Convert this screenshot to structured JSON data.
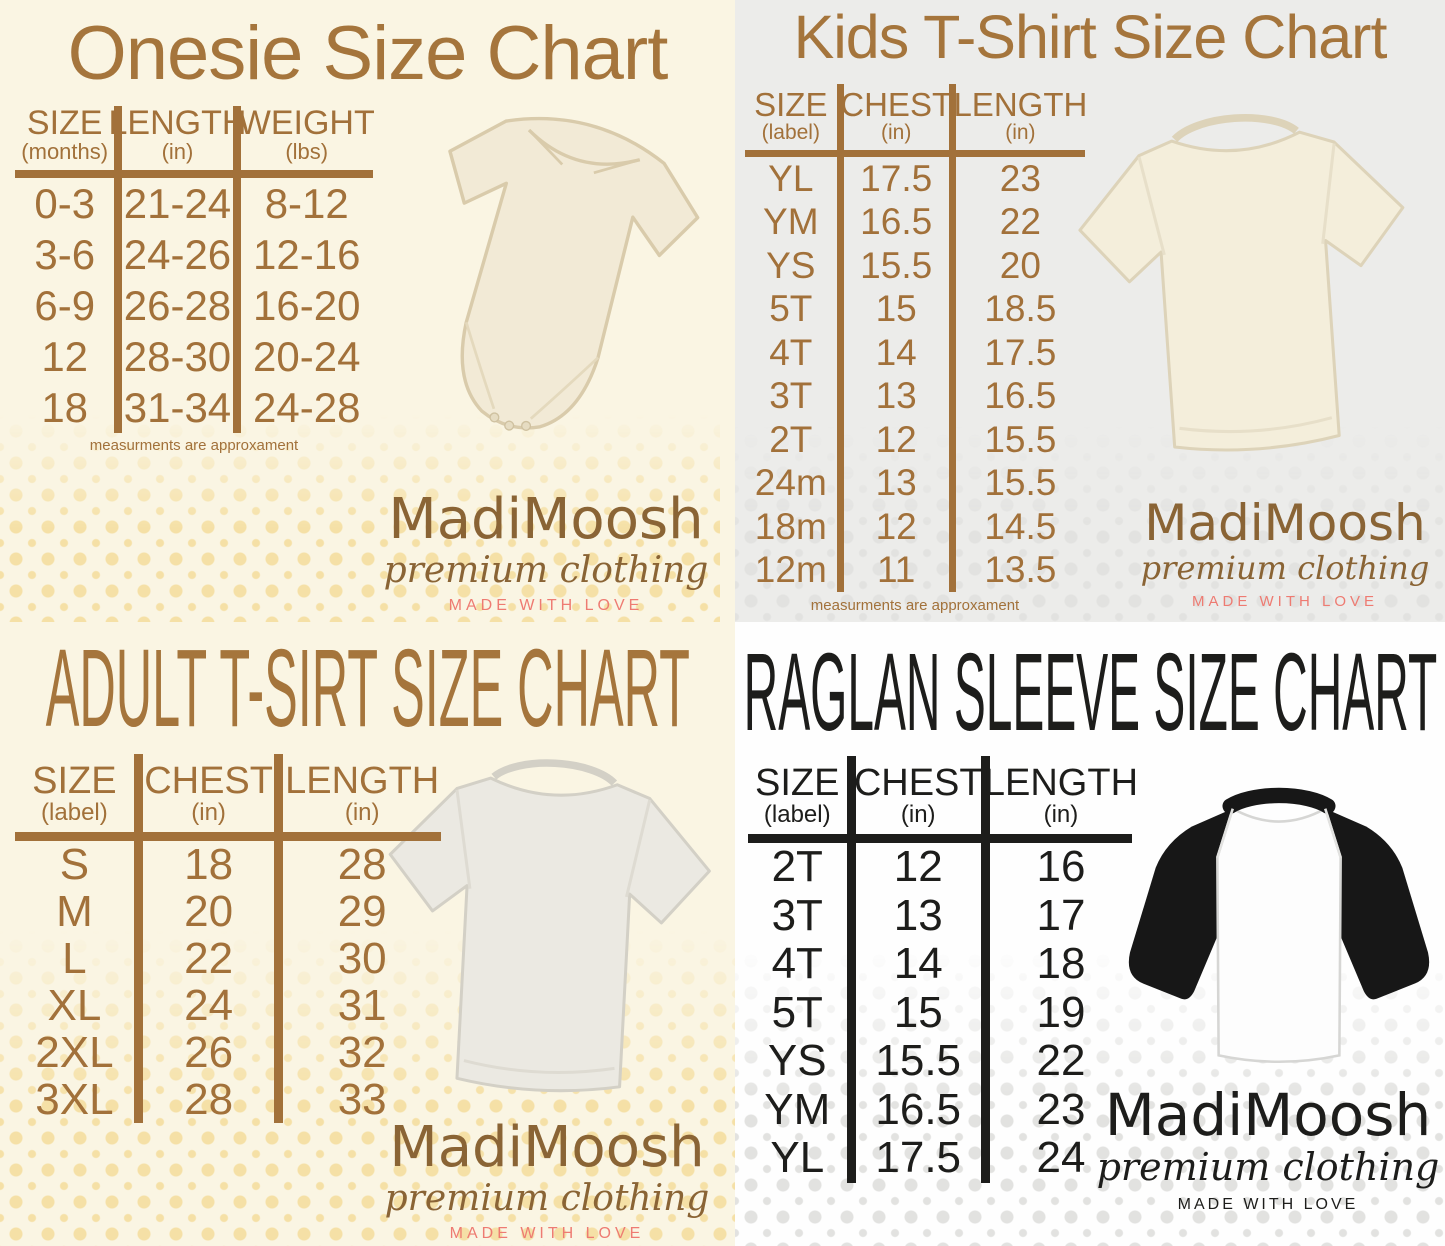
{
  "brand": {
    "name": "MadiMoosh",
    "tagline": "premium clothing",
    "motto": "MADE WITH LOVE"
  },
  "colors": {
    "title_brown": "#a5753c",
    "table_brown": "#a2713a",
    "logo_brown": "#8a6435",
    "black": "#1d1d1b",
    "motto_pink": "#ee7b72",
    "cream_background": "#faf5e3",
    "gray_background": "#ececea",
    "white_background": "#fefefe",
    "dot_yellow": "#f5e0a6",
    "dot_gray": "#e2e2e0"
  },
  "chart_data": [
    {
      "id": "onesie",
      "type": "table",
      "title": "Onesie Size Chart",
      "columns": [
        {
          "label": "SIZE",
          "unit": "(months)"
        },
        {
          "label": "LENGTH",
          "unit": "(in)"
        },
        {
          "label": "WEIGHT",
          "unit": "(lbs)"
        }
      ],
      "rows": [
        [
          "0-3",
          "21-24",
          "8-12"
        ],
        [
          "3-6",
          "24-26",
          "12-16"
        ],
        [
          "6-9",
          "26-28",
          "16-20"
        ],
        [
          "12",
          "28-30",
          "20-24"
        ],
        [
          "18",
          "31-34",
          "24-28"
        ]
      ],
      "note": "measurments are approxament",
      "image": "baby-onesie"
    },
    {
      "id": "kids-tshirt",
      "type": "table",
      "title": "Kids T-Shirt Size Chart",
      "columns": [
        {
          "label": "SIZE",
          "unit": "(label)"
        },
        {
          "label": "CHEST",
          "unit": "(in)"
        },
        {
          "label": "LENGTH",
          "unit": "(in)"
        }
      ],
      "rows": [
        [
          "YL",
          "17.5",
          "23"
        ],
        [
          "YM",
          "16.5",
          "22"
        ],
        [
          "YS",
          "15.5",
          "20"
        ],
        [
          "5T",
          "15",
          "18.5"
        ],
        [
          "4T",
          "14",
          "17.5"
        ],
        [
          "3T",
          "13",
          "16.5"
        ],
        [
          "2T",
          "12",
          "15.5"
        ],
        [
          "24m",
          "13",
          "15.5"
        ],
        [
          "18m",
          "12",
          "14.5"
        ],
        [
          "12m",
          "11",
          "13.5"
        ]
      ],
      "note": "measurments are approxament",
      "image": "kids-tshirt"
    },
    {
      "id": "adult-tshirt",
      "type": "table",
      "title": "ADULT T-SIRT SIZE CHART",
      "columns": [
        {
          "label": "SIZE",
          "unit": "(label)"
        },
        {
          "label": "CHEST",
          "unit": "(in)"
        },
        {
          "label": "LENGTH",
          "unit": "(in)"
        }
      ],
      "rows": [
        [
          "S",
          "18",
          "28"
        ],
        [
          "M",
          "20",
          "29"
        ],
        [
          "L",
          "22",
          "30"
        ],
        [
          "XL",
          "24",
          "31"
        ],
        [
          "2XL",
          "26",
          "32"
        ],
        [
          "3XL",
          "28",
          "33"
        ]
      ],
      "image": "adult-tshirt"
    },
    {
      "id": "raglan-sleeve",
      "type": "table",
      "title": "RAGLAN SLEEVE SIZE CHART",
      "columns": [
        {
          "label": "SIZE",
          "unit": "(label)"
        },
        {
          "label": "CHEST",
          "unit": "(in)"
        },
        {
          "label": "LENGTH",
          "unit": "(in)"
        }
      ],
      "rows": [
        [
          "2T",
          "12",
          "16"
        ],
        [
          "3T",
          "13",
          "17"
        ],
        [
          "4T",
          "14",
          "18"
        ],
        [
          "5T",
          "15",
          "19"
        ],
        [
          "YS",
          "15.5",
          "22"
        ],
        [
          "YM",
          "16.5",
          "23"
        ],
        [
          "YL",
          "17.5",
          "24"
        ]
      ],
      "image": "raglan-shirt"
    }
  ]
}
